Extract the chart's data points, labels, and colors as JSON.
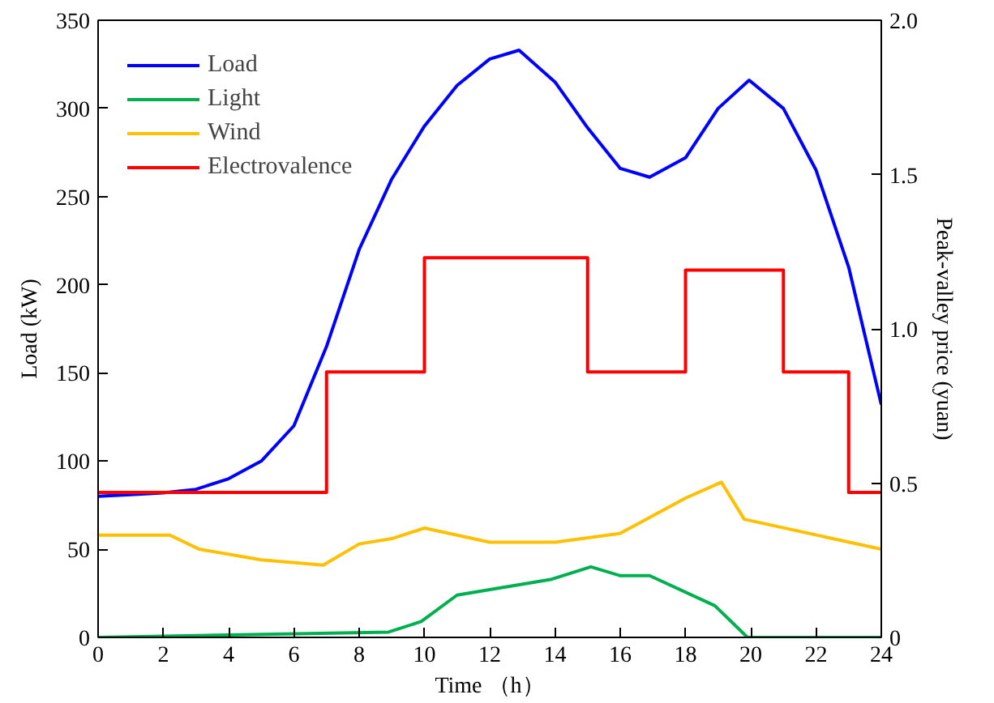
{
  "chart_data": {
    "type": "line",
    "xlabel": "Time （h）",
    "ylabel": "Load (kW)",
    "y2label": "Peak-valley price (yuan)",
    "xlim": [
      0,
      24
    ],
    "xticks": [
      0,
      2,
      4,
      6,
      8,
      10,
      12,
      14,
      16,
      18,
      20,
      22,
      24
    ],
    "ylim": [
      0,
      350
    ],
    "yticks": [
      0,
      50,
      100,
      150,
      200,
      250,
      300,
      350
    ],
    "y2lim": [
      0,
      2.0
    ],
    "y2ticks": [
      0,
      0.5,
      {
        "value": 1,
        "label": "1.0"
      },
      1.5,
      {
        "value": 2,
        "label": "2.0"
      }
    ],
    "grid": false,
    "legend": "top left",
    "marker": "none",
    "line_style": "solid",
    "series": [
      {
        "name": "Load",
        "color": "#0000ff",
        "x": [
          0,
          1,
          2,
          3,
          4,
          5,
          6,
          7,
          8,
          9,
          10,
          11,
          12,
          12.9,
          14,
          15,
          16,
          16.9,
          18,
          19,
          19.95,
          21,
          22,
          23,
          24
        ],
        "values": [
          80,
          81,
          82,
          84,
          90,
          100,
          120,
          165,
          220,
          260,
          290,
          313,
          328,
          333,
          315,
          289,
          266,
          261,
          272,
          300,
          316,
          300,
          265,
          210,
          132
        ]
      },
      {
        "name": "Light",
        "color": "#00b050",
        "x": [
          0,
          8.9,
          9.9,
          11,
          13.9,
          15.1,
          16,
          16.9,
          18.9,
          19.9,
          24
        ],
        "values": [
          0,
          3,
          9,
          24,
          33,
          40,
          35,
          35,
          18,
          0,
          0
        ]
      },
      {
        "name": "Wind",
        "color": "#ffc000",
        "x": [
          0,
          2.2,
          3.1,
          5,
          6.9,
          8,
          9,
          10,
          12,
          14,
          16,
          18,
          19.1,
          19.8,
          24
        ],
        "values": [
          58,
          58,
          50,
          44,
          41,
          53,
          56,
          62,
          54,
          54,
          59,
          79,
          88,
          67,
          50
        ]
      },
      {
        "name": "Electrovalence",
        "type": "step",
        "axis": "y2",
        "color": "#ff0000",
        "x": [
          0,
          7,
          10,
          15,
          18,
          21,
          23,
          24
        ],
        "values": [
          0.47,
          0.86,
          1.23,
          0.86,
          1.19,
          0.86,
          0.47,
          0.47
        ]
      }
    ]
  }
}
